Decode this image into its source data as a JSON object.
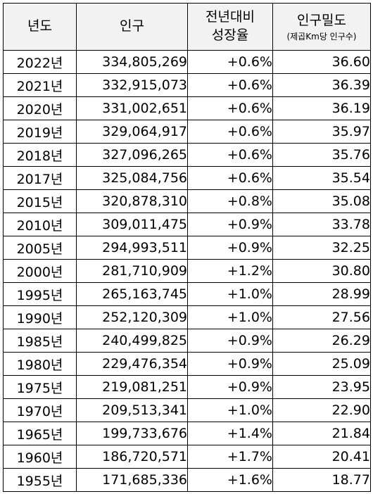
{
  "headers": {
    "year": "년도",
    "population": "인구",
    "growth_line1": "전년대비",
    "growth_line2": "성장율",
    "density": "인구밀도",
    "density_unit": "(제곱Km당 인구수)"
  },
  "rows": [
    {
      "year": "2022년",
      "population": "334,805,269",
      "growth": "+0.6%",
      "density": "36.60"
    },
    {
      "year": "2021년",
      "population": "332,915,073",
      "growth": "+0.6%",
      "density": "36.39"
    },
    {
      "year": "2020년",
      "population": "331,002,651",
      "growth": "+0.6%",
      "density": "36.19"
    },
    {
      "year": "2019년",
      "population": "329,064,917",
      "growth": "+0.6%",
      "density": "35.97"
    },
    {
      "year": "2018년",
      "population": "327,096,265",
      "growth": "+0.6%",
      "density": "35.76"
    },
    {
      "year": "2017년",
      "population": "325,084,756",
      "growth": "+0.6%",
      "density": "35.54"
    },
    {
      "year": "2015년",
      "population": "320,878,310",
      "growth": "+0.8%",
      "density": "35.08"
    },
    {
      "year": "2010년",
      "population": "309,011,475",
      "growth": "+0.9%",
      "density": "33.78"
    },
    {
      "year": "2005년",
      "population": "294,993,511",
      "growth": "+0.9%",
      "density": "32.25"
    },
    {
      "year": "2000년",
      "population": "281,710,909",
      "growth": "+1.2%",
      "density": "30.80"
    },
    {
      "year": "1995년",
      "population": "265,163,745",
      "growth": "+1.0%",
      "density": "28.99"
    },
    {
      "year": "1990년",
      "population": "252,120,309",
      "growth": "+1.0%",
      "density": "27.56"
    },
    {
      "year": "1985년",
      "population": "240,499,825",
      "growth": "+0.9%",
      "density": "26.29"
    },
    {
      "year": "1980년",
      "population": "229,476,354",
      "growth": "+0.9%",
      "density": "25.09"
    },
    {
      "year": "1975년",
      "population": "219,081,251",
      "growth": "+0.9%",
      "density": "23.95"
    },
    {
      "year": "1970년",
      "population": "209,513,341",
      "growth": "+1.0%",
      "density": "22.90"
    },
    {
      "year": "1965년",
      "population": "199,733,676",
      "growth": "+1.4%",
      "density": "21.84"
    },
    {
      "year": "1960년",
      "population": "186,720,571",
      "growth": "+1.7%",
      "density": "20.41"
    },
    {
      "year": "1955년",
      "population": "171,685,336",
      "growth": "+1.6%",
      "density": "18.77"
    }
  ],
  "colors": {
    "header_bg": "#f2f2f2",
    "growth_text": "#1f1fcf",
    "border": "#000000"
  }
}
